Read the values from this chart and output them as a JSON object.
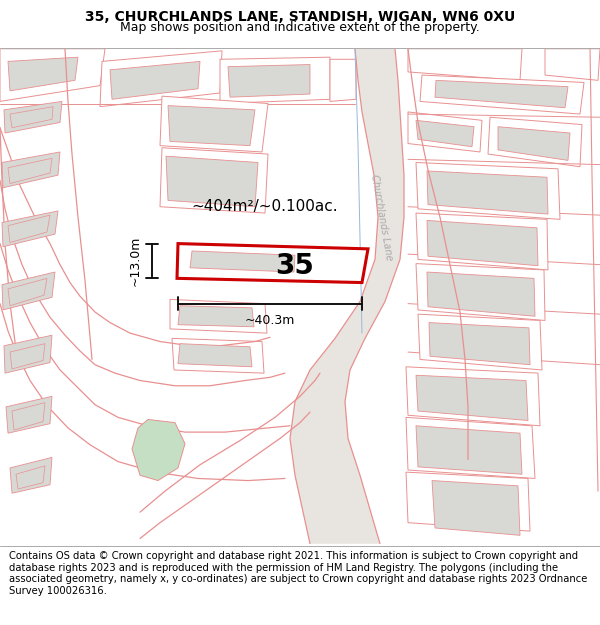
{
  "title_line1": "35, CHURCHLANDS LANE, STANDISH, WIGAN, WN6 0XU",
  "title_line2": "Map shows position and indicative extent of the property.",
  "footer_text": "Contains OS data © Crown copyright and database right 2021. This information is subject to Crown copyright and database rights 2023 and is reproduced with the permission of HM Land Registry. The polygons (including the associated geometry, namely x, y co-ordinates) are subject to Crown copyright and database rights 2023 Ordnance Survey 100026316.",
  "area_label": "~404m²/~0.100ac.",
  "width_label": "~40.3m",
  "height_label": "~13.0m",
  "plot_number": "35",
  "map_bg": "#ffffff",
  "building_fill": "#d8d8d5",
  "red_line_color": "#cc0000",
  "pink_line_color": "#e89090",
  "dim_line_color": "#111111",
  "road_label_color": "#aaaaaa",
  "road_fill": "#e8e4df",
  "green_area_color": "#c5dfc5",
  "blue_line_color": "#9ab8d8",
  "title_fontsize": 10,
  "subtitle_fontsize": 9,
  "footer_fontsize": 7.2
}
